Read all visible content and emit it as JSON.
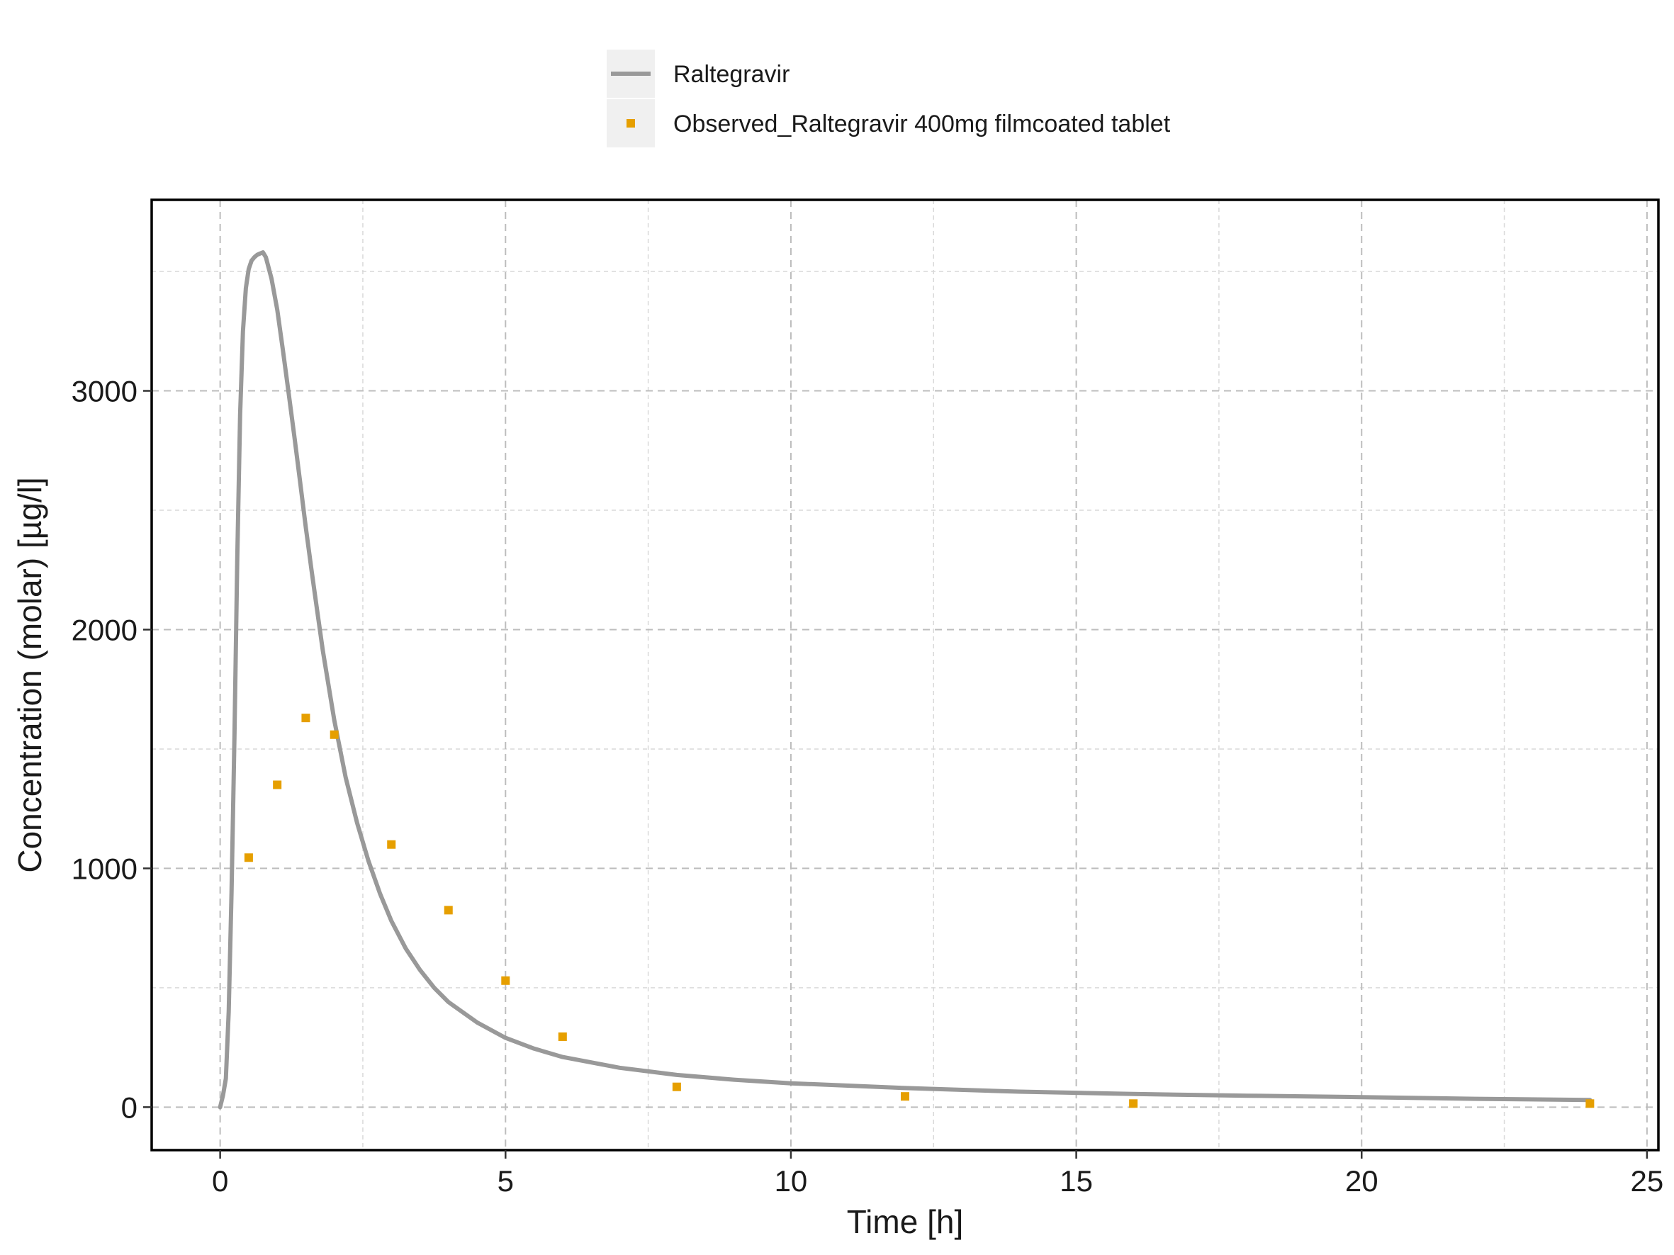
{
  "chart_data": {
    "type": "line",
    "xlabel": "Time [h]",
    "ylabel": "Concentration (molar) [µg/l]",
    "xlim": [
      -1.2,
      25.2
    ],
    "ylim": [
      -180,
      3800
    ],
    "x_ticks": [
      0,
      5,
      10,
      15,
      20,
      25
    ],
    "y_ticks": [
      0,
      1000,
      2000,
      3000
    ],
    "x_tick_labels": [
      "0",
      "5",
      "10",
      "15",
      "20",
      "25"
    ],
    "y_tick_labels": [
      "0",
      "1000",
      "2000",
      "3000"
    ],
    "grid": true,
    "legend_position": "top",
    "series": [
      {
        "name": "Raltegravir",
        "kind": "line",
        "color": "#999999",
        "x": [
          0.0,
          0.05,
          0.1,
          0.15,
          0.2,
          0.25,
          0.3,
          0.35,
          0.4,
          0.45,
          0.5,
          0.55,
          0.6,
          0.65,
          0.7,
          0.75,
          0.8,
          0.9,
          1.0,
          1.1,
          1.2,
          1.3,
          1.4,
          1.5,
          1.6,
          1.7,
          1.8,
          2.0,
          2.2,
          2.4,
          2.6,
          2.8,
          3.0,
          3.25,
          3.5,
          3.75,
          4.0,
          4.5,
          5.0,
          5.5,
          6.0,
          7.0,
          8.0,
          9.0,
          10.0,
          11.0,
          12.0,
          14.0,
          16.0,
          18.0,
          20.0,
          22.0,
          24.0
        ],
        "y": [
          0,
          50,
          120,
          400,
          900,
          1550,
          2300,
          2900,
          3250,
          3430,
          3510,
          3545,
          3560,
          3570,
          3575,
          3580,
          3560,
          3470,
          3340,
          3170,
          2990,
          2810,
          2620,
          2430,
          2250,
          2080,
          1910,
          1620,
          1380,
          1190,
          1030,
          895,
          780,
          665,
          575,
          500,
          440,
          355,
          290,
          245,
          210,
          165,
          135,
          115,
          100,
          90,
          80,
          65,
          55,
          48,
          42,
          35,
          30
        ]
      },
      {
        "name": "Observed_Raltegravir 400mg filmcoated tablet",
        "kind": "scatter",
        "color": "#E69F00",
        "x": [
          0.5,
          1.0,
          1.5,
          2.0,
          3.0,
          4.0,
          5.0,
          6.0,
          8.0,
          12.0,
          16.0,
          24.0
        ],
        "y": [
          1045,
          1350,
          1630,
          1560,
          1100,
          825,
          530,
          295,
          85,
          45,
          15,
          15
        ]
      }
    ]
  }
}
